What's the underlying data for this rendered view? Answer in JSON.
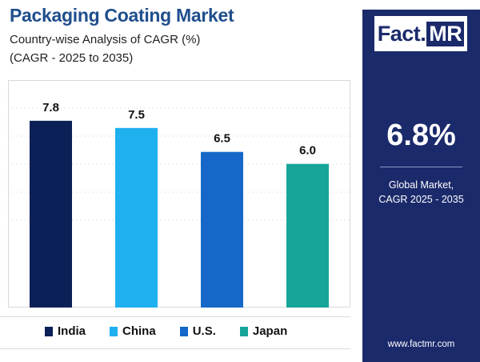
{
  "header": {
    "title": "Packaging Coating Market",
    "subtitle_line1": "Country-wise Analysis of CAGR (%)",
    "subtitle_line2": "(CAGR - 2025 to 2035)"
  },
  "chart_data": {
    "type": "bar",
    "title": "Packaging Coating Market",
    "subtitle": "Country-wise Analysis of CAGR (%) (CAGR - 2025 to 2035)",
    "categories": [
      "India",
      "China",
      "U.S.",
      "Japan"
    ],
    "values": [
      7.8,
      7.5,
      6.5,
      6.0
    ],
    "value_labels": [
      "7.8",
      "7.5",
      "6.5",
      "6.0"
    ],
    "colors": [
      "#0a2057",
      "#1fb0ef",
      "#1568c8",
      "#16a598"
    ],
    "xlabel": "",
    "ylabel": "",
    "ylim": [
      0,
      9.5
    ],
    "grid": true,
    "legend": "bottom"
  },
  "legend": [
    {
      "label": "India",
      "color": "#0a2057"
    },
    {
      "label": "China",
      "color": "#1fb0ef"
    },
    {
      "label": "U.S.",
      "color": "#1568c8"
    },
    {
      "label": "Japan",
      "color": "#16a598"
    }
  ],
  "sidebar": {
    "logo_fact": "Fact",
    "logo_dot": ".",
    "logo_mr": "MR",
    "big_value": "6.8%",
    "desc_line1": "Global Market,",
    "desc_line2": "CAGR 2025 - 2035",
    "url": "www.factmr.com"
  },
  "colors": {
    "panel": "#1b2a6b",
    "title": "#1f4e8c"
  }
}
